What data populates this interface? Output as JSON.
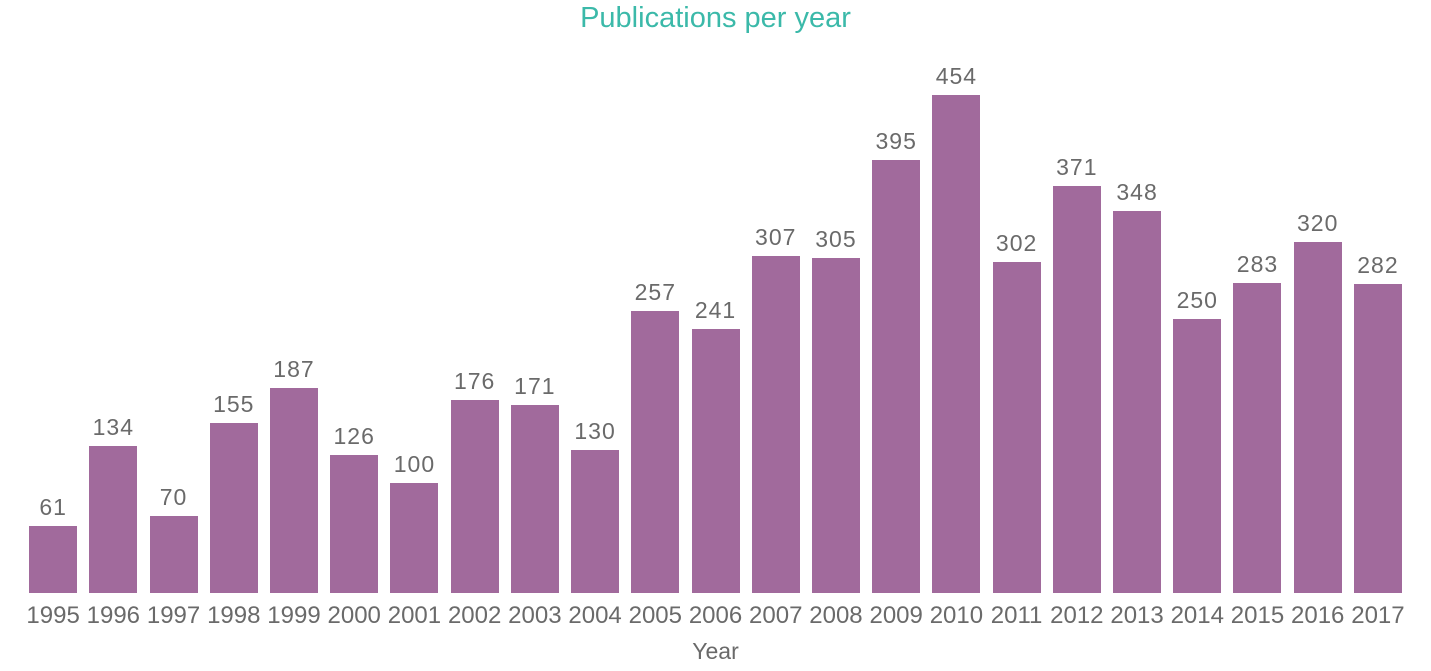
{
  "chart_data": {
    "type": "bar",
    "title": "Publications per year",
    "xlabel": "Year",
    "ylabel": "",
    "categories": [
      "1995",
      "1996",
      "1997",
      "1998",
      "1999",
      "2000",
      "2001",
      "2002",
      "2003",
      "2004",
      "2005",
      "2006",
      "2007",
      "2008",
      "2009",
      "2010",
      "2011",
      "2012",
      "2013",
      "2014",
      "2015",
      "2016",
      "2017"
    ],
    "values": [
      61,
      134,
      70,
      155,
      187,
      126,
      100,
      176,
      171,
      130,
      257,
      241,
      307,
      305,
      395,
      454,
      302,
      371,
      348,
      250,
      283,
      320,
      282
    ],
    "value_labels_shown": true,
    "grid": "off",
    "legend": "none",
    "ylim": [
      0,
      490
    ],
    "colors": {
      "bar": "#A16A9C",
      "title": "#3BB9A9",
      "labels": "#6A6A6A"
    }
  }
}
